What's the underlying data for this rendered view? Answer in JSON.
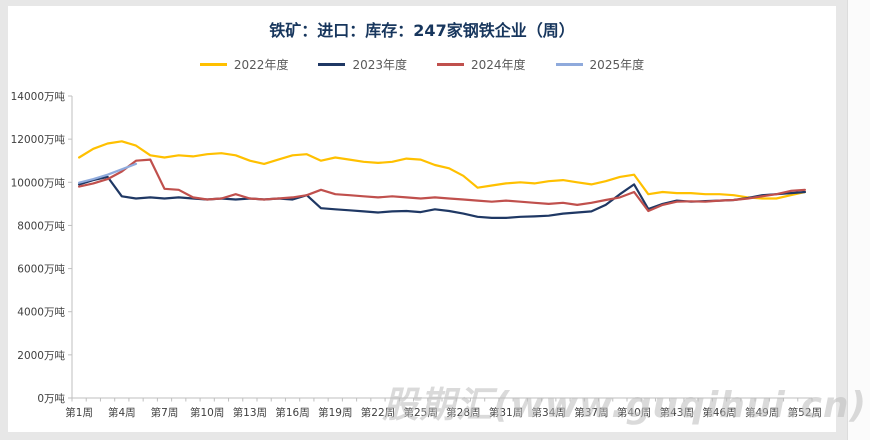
{
  "page": {
    "background": "#e7e7e7",
    "card_background": "#ffffff"
  },
  "title": {
    "text": "铁矿：进口：库存：247家钢铁企业（周）",
    "color": "#17365D"
  },
  "legend": [
    {
      "label": "2022年度",
      "color": "#FFC000"
    },
    {
      "label": "2023年度",
      "color": "#1F3864"
    },
    {
      "label": "2024年度",
      "color": "#C0504D"
    },
    {
      "label": "2025年度",
      "color": "#8FAADC"
    }
  ],
  "watermark": {
    "text": "股期汇(www.guqihui.cn)",
    "color": "#bdbdbd"
  },
  "chart_data": {
    "type": "line",
    "title": "铁矿：进口：库存：247家钢铁企业（周）",
    "xlabel": "",
    "ylabel": "万吨",
    "ylim": [
      0,
      14000
    ],
    "y_tick_interval": 2000,
    "grid": false,
    "legend_position": "top",
    "axis_color": "#BFBFBF",
    "tick_label_color": "#404040",
    "x_range_weeks": [
      1,
      52
    ],
    "y_ticks": [
      {
        "v": 0,
        "label": "0万吨"
      },
      {
        "v": 2000,
        "label": "2000万吨"
      },
      {
        "v": 4000,
        "label": "4000万吨"
      },
      {
        "v": 6000,
        "label": "6000万吨"
      },
      {
        "v": 8000,
        "label": "8000万吨"
      },
      {
        "v": 10000,
        "label": "10000万吨"
      },
      {
        "v": 12000,
        "label": "12000万吨"
      },
      {
        "v": 14000,
        "label": "14000万吨"
      }
    ],
    "x_ticks": [
      {
        "w": 1,
        "label": "第1周"
      },
      {
        "w": 4,
        "label": "第4周"
      },
      {
        "w": 7,
        "label": "第7周"
      },
      {
        "w": 10,
        "label": "第10周"
      },
      {
        "w": 13,
        "label": "第13周"
      },
      {
        "w": 16,
        "label": "第16周"
      },
      {
        "w": 19,
        "label": "第19周"
      },
      {
        "w": 22,
        "label": "第22周"
      },
      {
        "w": 25,
        "label": "第25周"
      },
      {
        "w": 28,
        "label": "第28周"
      },
      {
        "w": 31,
        "label": "第31周"
      },
      {
        "w": 34,
        "label": "第34周"
      },
      {
        "w": 37,
        "label": "第37周"
      },
      {
        "w": 40,
        "label": "第40周"
      },
      {
        "w": 43,
        "label": "第43周"
      },
      {
        "w": 46,
        "label": "第46周"
      },
      {
        "w": 49,
        "label": "第49周"
      },
      {
        "w": 52,
        "label": "第52周"
      }
    ],
    "series": [
      {
        "name": "2022年度",
        "color": "#FFC000",
        "start_week": 1,
        "values": [
          11150,
          11550,
          11800,
          11900,
          11700,
          11250,
          11150,
          11250,
          11200,
          11300,
          11350,
          11250,
          11000,
          10850,
          11050,
          11250,
          11300,
          11000,
          11150,
          11050,
          10950,
          10900,
          10950,
          11100,
          11050,
          10800,
          10650,
          10300,
          9750,
          9850,
          9950,
          10000,
          9950,
          10050,
          10100,
          10000,
          9900,
          10050,
          10250,
          10350,
          9450,
          9550,
          9500,
          9500,
          9450,
          9450,
          9400,
          9300,
          9250,
          9250,
          9400,
          9550
        ]
      },
      {
        "name": "2023年度",
        "color": "#1F3864",
        "start_week": 1,
        "values": [
          9900,
          10100,
          10250,
          9350,
          9250,
          9300,
          9250,
          9300,
          9250,
          9200,
          9250,
          9200,
          9250,
          9200,
          9250,
          9200,
          9400,
          8800,
          8750,
          8700,
          8650,
          8600,
          8650,
          8670,
          8620,
          8750,
          8670,
          8550,
          8400,
          8350,
          8350,
          8400,
          8420,
          8450,
          8550,
          8600,
          8650,
          8950,
          9450,
          9900,
          8760,
          9000,
          9150,
          9100,
          9130,
          9150,
          9180,
          9270,
          9400,
          9450,
          9500,
          9550
        ]
      },
      {
        "name": "2024年度",
        "color": "#C0504D",
        "start_week": 1,
        "values": [
          9800,
          9950,
          10150,
          10500,
          11000,
          11050,
          9700,
          9650,
          9300,
          9200,
          9250,
          9450,
          9250,
          9200,
          9250,
          9300,
          9400,
          9650,
          9450,
          9400,
          9350,
          9300,
          9350,
          9300,
          9250,
          9300,
          9250,
          9200,
          9150,
          9100,
          9150,
          9100,
          9050,
          9000,
          9050,
          8950,
          9050,
          9180,
          9300,
          9550,
          8670,
          8950,
          9100,
          9120,
          9100,
          9150,
          9180,
          9250,
          9350,
          9450,
          9600,
          9650
        ]
      },
      {
        "name": "2025年度",
        "color": "#8FAADC",
        "start_week": 1,
        "values": [
          9980,
          10150,
          10350,
          10600,
          10850
        ]
      }
    ]
  }
}
